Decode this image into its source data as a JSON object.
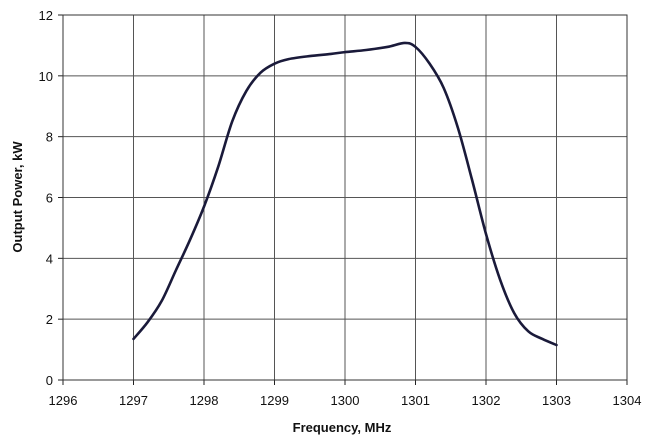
{
  "chart_data": {
    "type": "line",
    "title": "",
    "xlabel": "Frequency, MHz",
    "ylabel": "Output Power, kW",
    "xlim": [
      1296,
      1304
    ],
    "ylim": [
      0,
      12
    ],
    "x_ticks": [
      "1296",
      "1297",
      "1298",
      "1299",
      "1300",
      "1301",
      "1302",
      "1303",
      "1304"
    ],
    "y_ticks": [
      "0",
      "2",
      "4",
      "6",
      "8",
      "10",
      "12"
    ],
    "grid": true,
    "legend": "none",
    "line_color": "#1a1a3a",
    "series": [
      {
        "x": [
          1297.0,
          1297.2,
          1297.4,
          1297.6,
          1297.8,
          1298.0,
          1298.2,
          1298.4,
          1298.6,
          1298.8,
          1299.0,
          1299.2,
          1299.5,
          1299.8,
          1300.0,
          1300.3,
          1300.6,
          1300.85,
          1301.0,
          1301.2,
          1301.4,
          1301.6,
          1301.8,
          1302.0,
          1302.2,
          1302.4,
          1302.6,
          1302.8,
          1303.0
        ],
        "y": [
          1.35,
          1.9,
          2.6,
          3.6,
          4.6,
          5.7,
          7.0,
          8.5,
          9.5,
          10.1,
          10.4,
          10.55,
          10.65,
          10.72,
          10.78,
          10.85,
          10.95,
          11.08,
          10.95,
          10.4,
          9.6,
          8.3,
          6.6,
          4.8,
          3.3,
          2.2,
          1.6,
          1.35,
          1.15
        ]
      }
    ]
  }
}
